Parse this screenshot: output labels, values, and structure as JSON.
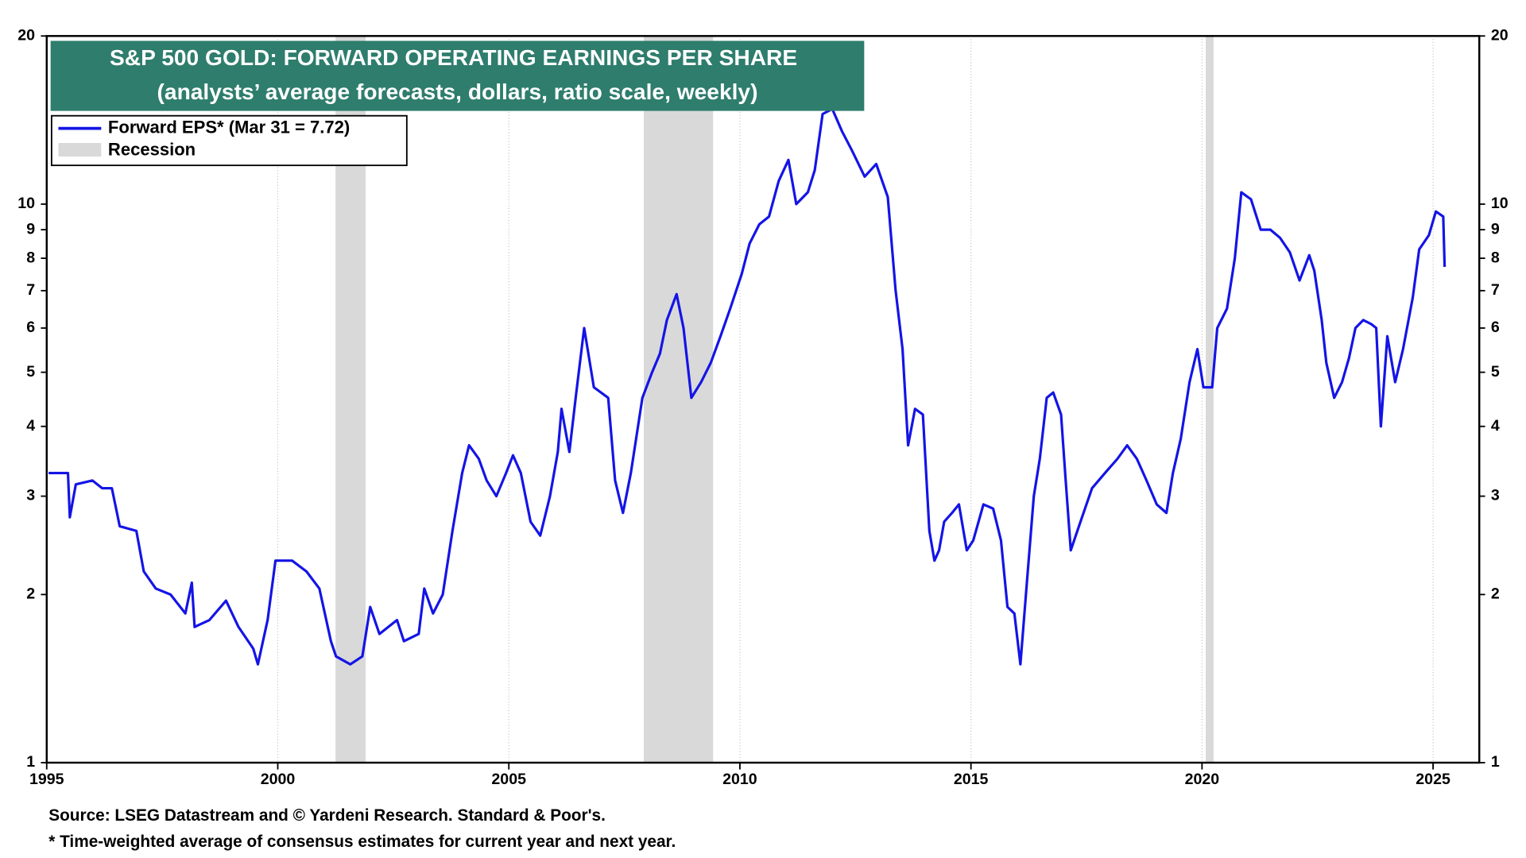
{
  "chart_data": {
    "type": "line",
    "title": "S&P 500 GOLD: FORWARD OPERATING EARNINGS PER SHARE",
    "subtitle": "(analysts’ average forecasts, dollars, ratio scale, weekly)",
    "notes": [
      "Source: LSEG Datastream and © Yardeni Research. Standard & Poor's.",
      "* Time-weighted average of consensus estimates for current year and next year."
    ],
    "log_scale": true,
    "grid": "x",
    "legend": "upper left",
    "xlim": [
      1995,
      2026
    ],
    "xticks": [
      1995,
      2000,
      2005,
      2010,
      2015,
      2020,
      2025
    ],
    "ylim": [
      1,
      20
    ],
    "yticks": [
      1,
      2,
      3,
      4,
      5,
      6,
      7,
      8,
      9,
      10,
      20
    ],
    "recessions": {
      "name": "Recession",
      "color": "#d9d9d9",
      "spans": [
        [
          2001.25,
          2001.9
        ],
        [
          2007.92,
          2009.42
        ],
        [
          2020.08,
          2020.25
        ]
      ]
    },
    "x": [
      1995.04,
      1995.46,
      1995.5,
      1995.63,
      1995.99,
      1996.2,
      1996.41,
      1996.58,
      1996.94,
      1997.1,
      1997.36,
      1997.68,
      1998.0,
      1998.14,
      1998.2,
      1998.52,
      1998.88,
      1999.15,
      1999.47,
      1999.57,
      1999.78,
      1999.95,
      2000.31,
      2000.62,
      2000.9,
      2001.15,
      2001.26,
      2001.57,
      2001.83,
      2002.0,
      2002.2,
      2002.58,
      2002.73,
      2003.05,
      2003.17,
      2003.36,
      2003.57,
      2003.78,
      2003.99,
      2004.14,
      2004.35,
      2004.52,
      2004.73,
      2004.94,
      2005.09,
      2005.26,
      2005.47,
      2005.68,
      2005.89,
      2006.06,
      2006.14,
      2006.31,
      2006.46,
      2006.63,
      2006.84,
      2007.15,
      2007.3,
      2007.47,
      2007.64,
      2007.89,
      2008.1,
      2008.27,
      2008.42,
      2008.63,
      2008.78,
      2008.95,
      2009.16,
      2009.37,
      2009.58,
      2009.79,
      2010.04,
      2010.21,
      2010.42,
      2010.63,
      2010.84,
      2011.05,
      2011.22,
      2011.47,
      2011.62,
      2011.79,
      2012.0,
      2012.21,
      2012.42,
      2012.7,
      2012.95,
      2013.2,
      2013.37,
      2013.52,
      2013.64,
      2013.79,
      2013.96,
      2014.1,
      2014.21,
      2014.31,
      2014.42,
      2014.59,
      2014.74,
      2014.91,
      2015.05,
      2015.27,
      2015.48,
      2015.65,
      2015.79,
      2015.94,
      2016.07,
      2016.21,
      2016.36,
      2016.49,
      2016.64,
      2016.78,
      2016.95,
      2017.05,
      2017.16,
      2017.37,
      2017.62,
      2017.9,
      2018.17,
      2018.38,
      2018.59,
      2018.8,
      2019.02,
      2019.23,
      2019.37,
      2019.54,
      2019.73,
      2019.9,
      2020.03,
      2020.22,
      2020.33,
      2020.54,
      2020.71,
      2020.85,
      2021.06,
      2021.27,
      2021.48,
      2021.69,
      2021.9,
      2022.11,
      2022.32,
      2022.43,
      2022.59,
      2022.69,
      2022.86,
      2023.03,
      2023.18,
      2023.32,
      2023.49,
      2023.66,
      2023.77,
      2023.87,
      2024.01,
      2024.18,
      2024.35,
      2024.56,
      2024.7,
      2024.91,
      2025.06,
      2025.22,
      2025.25
    ],
    "series": [
      {
        "name": "Forward EPS* (Mar 31 = 7.72)",
        "color": "#1414e6",
        "values": [
          3.3,
          3.3,
          2.75,
          3.15,
          3.2,
          3.1,
          3.1,
          2.65,
          2.6,
          2.2,
          2.05,
          2.0,
          1.85,
          2.1,
          1.75,
          1.8,
          1.95,
          1.75,
          1.6,
          1.5,
          1.8,
          2.3,
          2.3,
          2.2,
          2.05,
          1.65,
          1.55,
          1.5,
          1.55,
          1.9,
          1.7,
          1.8,
          1.65,
          1.7,
          2.05,
          1.85,
          2.0,
          2.6,
          3.3,
          3.7,
          3.5,
          3.2,
          3.0,
          3.3,
          3.55,
          3.3,
          2.7,
          2.55,
          3.0,
          3.6,
          4.3,
          3.6,
          4.6,
          6.0,
          4.7,
          4.5,
          3.2,
          2.8,
          3.3,
          4.5,
          5.0,
          5.4,
          6.2,
          6.9,
          6.0,
          4.5,
          4.8,
          5.2,
          5.8,
          6.5,
          7.5,
          8.5,
          9.2,
          9.5,
          11.0,
          12.0,
          10.0,
          10.5,
          11.5,
          14.5,
          14.8,
          13.5,
          12.5,
          11.2,
          11.8,
          10.3,
          7.0,
          5.5,
          3.7,
          4.3,
          4.2,
          2.6,
          2.3,
          2.4,
          2.7,
          2.8,
          2.9,
          2.4,
          2.5,
          2.9,
          2.85,
          2.5,
          1.9,
          1.85,
          1.5,
          2.1,
          3.0,
          3.5,
          4.5,
          4.6,
          4.2,
          3.2,
          2.4,
          2.7,
          3.1,
          3.3,
          3.5,
          3.7,
          3.5,
          3.2,
          2.9,
          2.8,
          3.3,
          3.8,
          4.8,
          5.5,
          4.7,
          4.7,
          6.0,
          6.5,
          8.0,
          10.5,
          10.2,
          9.0,
          9.0,
          8.7,
          8.2,
          7.3,
          8.1,
          7.6,
          6.2,
          5.2,
          4.5,
          4.8,
          5.3,
          6.0,
          6.2,
          6.1,
          6.0,
          4.0,
          5.8,
          4.8,
          5.5,
          6.8,
          8.3,
          8.8,
          9.7,
          9.5,
          7.72
        ]
      }
    ]
  }
}
